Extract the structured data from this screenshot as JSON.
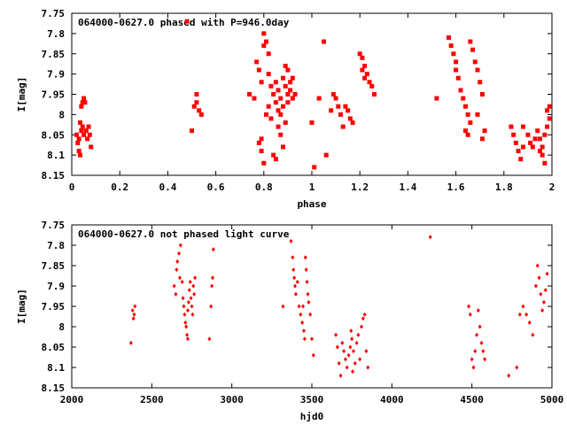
{
  "chart_data": [
    {
      "type": "scatter",
      "title": "064000-0627.0 phased with P=946.0day",
      "xlabel": "phase",
      "ylabel": "I[mag]",
      "xlim": [
        0,
        2
      ],
      "ylim": [
        7.75,
        8.15
      ],
      "y_inverted": true,
      "grid": false,
      "marker": "square",
      "color": "#ff0000",
      "x_ticks": [
        "0",
        "0.2",
        "0.4",
        "0.6",
        "0.8",
        "1",
        "1.2",
        "1.4",
        "1.6",
        "1.8",
        "2"
      ],
      "y_ticks": [
        "7.75",
        "7.8",
        "7.85",
        "7.9",
        "7.95",
        "8",
        "8.05",
        "8.1",
        "8.15"
      ],
      "series": [
        {
          "points": [
            [
              0.02,
              8.05
            ],
            [
              0.025,
              8.07
            ],
            [
              0.03,
              8.09
            ],
            [
              0.035,
              8.1
            ],
            [
              0.03,
              8.06
            ],
            [
              0.04,
              8.04
            ],
            [
              0.045,
              8.03
            ],
            [
              0.05,
              8.05
            ],
            [
              0.035,
              8.02
            ],
            [
              0.04,
              7.98
            ],
            [
              0.045,
              7.97
            ],
            [
              0.05,
              7.96
            ],
            [
              0.055,
              7.97
            ],
            [
              0.06,
              8.04
            ],
            [
              0.065,
              8.06
            ],
            [
              0.07,
              8.03
            ],
            [
              0.075,
              8.05
            ],
            [
              0.08,
              8.08
            ],
            [
              0.48,
              7.77
            ],
            [
              0.5,
              8.04
            ],
            [
              0.51,
              7.98
            ],
            [
              0.52,
              7.97
            ],
            [
              0.52,
              7.95
            ],
            [
              0.53,
              7.99
            ],
            [
              0.54,
              8.0
            ],
            [
              0.74,
              7.95
            ],
            [
              0.76,
              7.96
            ],
            [
              0.77,
              7.87
            ],
            [
              0.78,
              7.89
            ],
            [
              0.79,
              7.92
            ],
            [
              0.8,
              7.8
            ],
            [
              0.8,
              7.83
            ],
            [
              0.81,
              7.82
            ],
            [
              0.82,
              7.85
            ],
            [
              0.78,
              8.07
            ],
            [
              0.79,
              8.06
            ],
            [
              0.8,
              8.12
            ],
            [
              0.79,
              8.09
            ],
            [
              0.81,
              8.0
            ],
            [
              0.82,
              7.98
            ],
            [
              0.83,
              8.01
            ],
            [
              0.84,
              8.1
            ],
            [
              0.85,
              8.11
            ],
            [
              0.82,
              7.9
            ],
            [
              0.83,
              7.93
            ],
            [
              0.84,
              7.95
            ],
            [
              0.85,
              7.92
            ],
            [
              0.86,
              7.94
            ],
            [
              0.87,
              7.96
            ],
            [
              0.88,
              7.91
            ],
            [
              0.89,
              7.93
            ],
            [
              0.9,
              7.95
            ],
            [
              0.86,
              8.03
            ],
            [
              0.87,
              8.05
            ],
            [
              0.88,
              8.08
            ],
            [
              0.89,
              7.88
            ],
            [
              0.9,
              7.89
            ],
            [
              0.91,
              7.94
            ],
            [
              0.92,
              7.96
            ],
            [
              0.93,
              7.95
            ],
            [
              0.85,
              7.97
            ],
            [
              0.86,
              7.99
            ],
            [
              0.87,
              8.0
            ],
            [
              0.88,
              7.98
            ],
            [
              0.9,
              7.97
            ],
            [
              0.91,
              7.92
            ],
            [
              0.92,
              7.91
            ],
            [
              0.89,
              8.02
            ],
            [
              1.0,
              8.02
            ],
            [
              1.01,
              8.13
            ],
            [
              1.03,
              7.96
            ],
            [
              1.05,
              7.82
            ],
            [
              1.06,
              8.1
            ],
            [
              1.08,
              7.99
            ],
            [
              1.09,
              7.95
            ],
            [
              1.1,
              7.96
            ],
            [
              1.11,
              7.98
            ],
            [
              1.12,
              8.0
            ],
            [
              1.13,
              8.03
            ],
            [
              1.14,
              7.98
            ],
            [
              1.15,
              7.99
            ],
            [
              1.16,
              8.01
            ],
            [
              1.17,
              8.02
            ],
            [
              1.2,
              7.85
            ],
            [
              1.21,
              7.86
            ],
            [
              1.22,
              7.88
            ],
            [
              1.23,
              7.9
            ],
            [
              1.24,
              7.92
            ],
            [
              1.25,
              7.93
            ],
            [
              1.26,
              7.95
            ],
            [
              1.21,
              7.89
            ],
            [
              1.22,
              7.91
            ],
            [
              1.52,
              7.96
            ],
            [
              1.57,
              7.81
            ],
            [
              1.58,
              7.83
            ],
            [
              1.59,
              7.85
            ],
            [
              1.6,
              7.87
            ],
            [
              1.6,
              7.89
            ],
            [
              1.61,
              7.91
            ],
            [
              1.62,
              7.94
            ],
            [
              1.63,
              7.96
            ],
            [
              1.64,
              7.98
            ],
            [
              1.65,
              8.0
            ],
            [
              1.66,
              8.02
            ],
            [
              1.64,
              8.04
            ],
            [
              1.65,
              8.05
            ],
            [
              1.66,
              7.82
            ],
            [
              1.67,
              7.84
            ],
            [
              1.68,
              7.87
            ],
            [
              1.69,
              7.89
            ],
            [
              1.7,
              7.92
            ],
            [
              1.71,
              7.95
            ],
            [
              1.69,
              8.0
            ],
            [
              1.71,
              8.06
            ],
            [
              1.72,
              8.04
            ],
            [
              1.83,
              8.03
            ],
            [
              1.84,
              8.05
            ],
            [
              1.85,
              8.07
            ],
            [
              1.86,
              8.09
            ],
            [
              1.87,
              8.11
            ],
            [
              1.88,
              8.08
            ],
            [
              1.88,
              8.03
            ],
            [
              1.9,
              8.05
            ],
            [
              1.91,
              8.07
            ],
            [
              1.92,
              8.08
            ],
            [
              1.93,
              8.06
            ],
            [
              1.94,
              8.04
            ],
            [
              1.95,
              8.06
            ],
            [
              1.96,
              8.08
            ],
            [
              1.97,
              8.05
            ],
            [
              1.98,
              8.03
            ],
            [
              1.99,
              8.01
            ],
            [
              1.98,
              7.99
            ],
            [
              1.99,
              7.98
            ],
            [
              1.96,
              8.1
            ],
            [
              1.95,
              8.09
            ],
            [
              1.97,
              8.12
            ]
          ]
        }
      ]
    },
    {
      "type": "scatter",
      "title": "064000-0627.0 not phased light curve",
      "xlabel": "hjd0",
      "ylabel": "I[mag]",
      "xlim": [
        2000,
        5000
      ],
      "ylim": [
        7.75,
        8.15
      ],
      "y_inverted": true,
      "grid": false,
      "marker": "diamond",
      "color": "#ff0000",
      "x_ticks": [
        "2000",
        "2500",
        "3000",
        "3500",
        "4000",
        "4500",
        "5000"
      ],
      "y_ticks": [
        "7.75",
        "7.8",
        "7.85",
        "7.9",
        "7.95",
        "8",
        "8.05",
        "8.1",
        "8.15"
      ],
      "series": [
        {
          "points": [
            [
              2370,
              8.04
            ],
            [
              2380,
              7.96
            ],
            [
              2385,
              7.98
            ],
            [
              2390,
              7.97
            ],
            [
              2395,
              7.95
            ],
            [
              2640,
              7.9
            ],
            [
              2650,
              7.92
            ],
            [
              2655,
              7.86
            ],
            [
              2660,
              7.84
            ],
            [
              2670,
              7.82
            ],
            [
              2675,
              7.88
            ],
            [
              2680,
              7.8
            ],
            [
              2690,
              7.89
            ],
            [
              2695,
              7.93
            ],
            [
              2700,
              7.95
            ],
            [
              2705,
              7.97
            ],
            [
              2710,
              7.99
            ],
            [
              2715,
              8.0
            ],
            [
              2720,
              8.02
            ],
            [
              2725,
              7.96
            ],
            [
              2730,
              7.94
            ],
            [
              2735,
              7.91
            ],
            [
              2740,
              7.89
            ],
            [
              2745,
              7.93
            ],
            [
              2750,
              7.95
            ],
            [
              2755,
              7.97
            ],
            [
              2760,
              7.9
            ],
            [
              2765,
              7.92
            ],
            [
              2770,
              7.88
            ],
            [
              2725,
              8.03
            ],
            [
              2860,
              8.03
            ],
            [
              2870,
              7.95
            ],
            [
              2875,
              7.9
            ],
            [
              2880,
              7.88
            ],
            [
              2885,
              7.81
            ],
            [
              3320,
              7.95
            ],
            [
              3370,
              7.79
            ],
            [
              3380,
              7.83
            ],
            [
              3385,
              7.86
            ],
            [
              3390,
              7.88
            ],
            [
              3395,
              7.9
            ],
            [
              3400,
              7.92
            ],
            [
              3410,
              7.89
            ],
            [
              3420,
              7.95
            ],
            [
              3430,
              7.97
            ],
            [
              3440,
              7.99
            ],
            [
              3450,
              8.01
            ],
            [
              3455,
              8.03
            ],
            [
              3460,
              7.83
            ],
            [
              3465,
              7.86
            ],
            [
              3470,
              7.89
            ],
            [
              3475,
              7.92
            ],
            [
              3480,
              7.94
            ],
            [
              3490,
              7.97
            ],
            [
              3500,
              8.03
            ],
            [
              3510,
              8.07
            ],
            [
              3445,
              7.95
            ],
            [
              3650,
              8.02
            ],
            [
              3660,
              8.05
            ],
            [
              3670,
              8.09
            ],
            [
              3680,
              8.12
            ],
            [
              3690,
              8.04
            ],
            [
              3700,
              8.06
            ],
            [
              3710,
              8.08
            ],
            [
              3720,
              8.1
            ],
            [
              3730,
              8.07
            ],
            [
              3740,
              8.05
            ],
            [
              3750,
              8.03
            ],
            [
              3760,
              8.06
            ],
            [
              3770,
              8.09
            ],
            [
              3780,
              8.04
            ],
            [
              3790,
              8.02
            ],
            [
              3800,
              8.08
            ],
            [
              3810,
              8.0
            ],
            [
              3820,
              7.98
            ],
            [
              3830,
              7.97
            ],
            [
              3840,
              8.06
            ],
            [
              3850,
              8.1
            ],
            [
              3745,
              8.01
            ],
            [
              3755,
              8.11
            ],
            [
              4240,
              7.78
            ],
            [
              4480,
              7.95
            ],
            [
              4490,
              7.97
            ],
            [
              4500,
              8.08
            ],
            [
              4510,
              8.1
            ],
            [
              4520,
              8.06
            ],
            [
              4530,
              8.02
            ],
            [
              4540,
              7.96
            ],
            [
              4550,
              8.0
            ],
            [
              4560,
              8.04
            ],
            [
              4570,
              8.06
            ],
            [
              4580,
              8.08
            ],
            [
              4730,
              8.12
            ],
            [
              4780,
              8.1
            ],
            [
              4800,
              7.97
            ],
            [
              4820,
              7.95
            ],
            [
              4840,
              7.97
            ],
            [
              4860,
              7.99
            ],
            [
              4880,
              8.02
            ],
            [
              4900,
              7.9
            ],
            [
              4910,
              7.85
            ],
            [
              4920,
              7.88
            ],
            [
              4930,
              7.92
            ],
            [
              4940,
              7.96
            ],
            [
              4950,
              7.94
            ],
            [
              4960,
              7.91
            ],
            [
              4970,
              7.87
            ]
          ]
        }
      ]
    }
  ]
}
